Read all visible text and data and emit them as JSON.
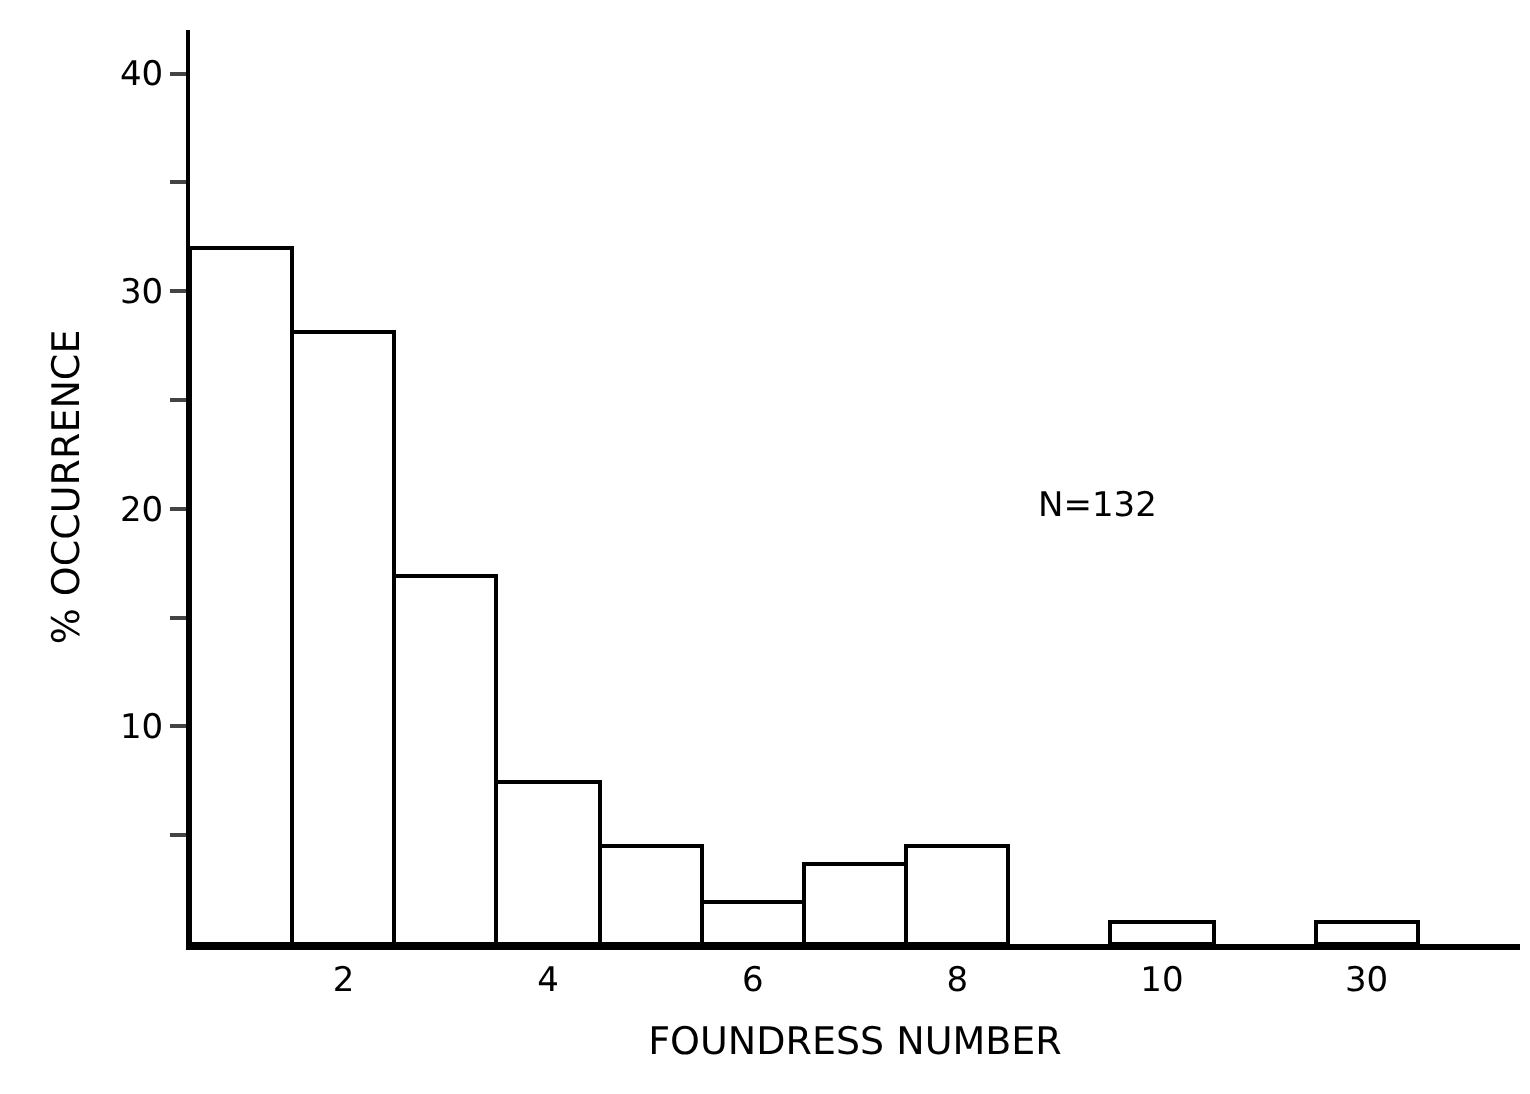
{
  "chart_data": {
    "type": "bar",
    "xlabel": "FOUNDRESS NUMBER",
    "ylabel": "% OCCURRENCE",
    "categories": [
      null,
      "2",
      null,
      "4",
      null,
      "6",
      null,
      "8",
      null,
      "10",
      null,
      "30",
      null
    ],
    "values": [
      32.0,
      28.1,
      16.9,
      7.4,
      4.5,
      1.9,
      3.7,
      4.5,
      null,
      1.0,
      null,
      1.0,
      null
    ],
    "color": "#ffffff",
    "ylim": [
      0,
      42
    ],
    "yticks": [
      {
        "value": 5,
        "label": null
      },
      10,
      {
        "value": 15,
        "label": null
      },
      20,
      {
        "value": 25,
        "label": null
      },
      30,
      {
        "value": 35,
        "label": null
      },
      40
    ],
    "annotations": [
      "N=132"
    ]
  }
}
